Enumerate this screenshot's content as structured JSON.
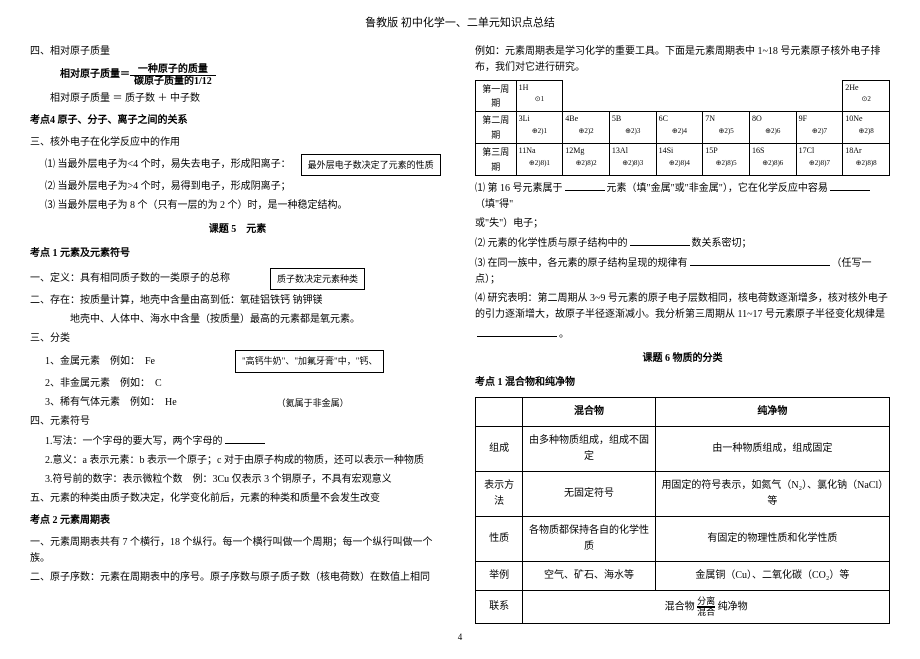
{
  "header": {
    "title": "鲁教版 初中化学一、二单元知识点总结"
  },
  "left": {
    "sec4": "四、相对原子质量",
    "formula_label": "相对原子质量＝",
    "frac_num": "一种原子的质量",
    "frac_den": "碳原子质量的1/12",
    "formula2": "相对原子质量 ＝ 质子数 ＋ 中子数",
    "kd4": "考点4 原子、分子、离子之间的关系",
    "sec3": "三、核外电子在化学反应中的作用",
    "l1": "⑴ 当最外层电子为<4 个时，易失去电子，形成阳离子：",
    "box1": "最外层电子数决定了元素的性质",
    "l2": "⑵ 当最外层电子为>4 个时，易得到电子，形成阴离子；",
    "l3": "⑶ 当最外层电子为 8 个（只有一层的为 2 个）时，是一种稳定结构。",
    "topic5": "课题 5　元素",
    "kd1": "考点 1 元素及元素符号",
    "def": "一、定义：具有相同质子数的一类原子的总称",
    "box2": "质子数决定元素种类",
    "exist": "二、存在：按质量计算，地壳中含量由高到低：氧硅铝铁钙 钠钾镁",
    "exist2": "地壳中、人体中、海水中含量（按质量）最高的元素都是氧元素。",
    "cat": "三、分类",
    "cat1": "1、金属元素　例如：　Fe",
    "cat2": "2、非金属元素　例如：　C",
    "cat3": "3、稀有气体元素　例如：　He",
    "box3": "\"高钙牛奶\"、\"加氟牙膏\"中，\"钙、",
    "note_nonmetal": "（氦属于非金属）",
    "sym": "四、元素符号",
    "sym1": "1.写法：一个字母的要大写，两个字母的",
    "sym2": "2.意义：a 表示元素：b 表示一个原子；c 对于由原子构成的物质，还可以表示一种物质",
    "sym3": "3.符号前的数字：表示微粒个数　例：3Cu 仅表示 3 个铜原子，不具有宏观意义",
    "type": "五、元素的种类由质子数决定，化学变化前后，元素的种类和质量不会发生改变",
    "kd2": "考点 2 元素周期表",
    "pt1": "一、元素周期表共有 7 个横行，18 个纵行。每一个横行叫做一个周期；每一个纵行叫做一个族。",
    "pt2": "二、原子序数：元素在周期表中的序号。原子序数与原子质子数（核电荷数）在数值上相同"
  },
  "right": {
    "intro": "例如：元素周期表是学习化学的重要工具。下面是元素周期表中 1~18 号元素原子核外电子排布，我们对它进行研究。",
    "rows": [
      "第一周期",
      "第二周期",
      "第三周期"
    ],
    "elements": [
      [
        {
          "n": "1H",
          "s": "⊙1"
        },
        null,
        null,
        null,
        null,
        null,
        null,
        {
          "n": "2He",
          "s": "⊙2"
        }
      ],
      [
        {
          "n": "3Li",
          "s": "⊕2)1"
        },
        {
          "n": "4Be",
          "s": "⊕2)2"
        },
        {
          "n": "5B",
          "s": "⊕2)3"
        },
        {
          "n": "6C",
          "s": "⊕2)4"
        },
        {
          "n": "7N",
          "s": "⊕2)5"
        },
        {
          "n": "8O",
          "s": "⊕2)6"
        },
        {
          "n": "9F",
          "s": "⊕2)7"
        },
        {
          "n": "10Ne",
          "s": "⊕2)8"
        }
      ],
      [
        {
          "n": "11Na",
          "s": "⊕2)8)1"
        },
        {
          "n": "12Mg",
          "s": "⊕2)8)2"
        },
        {
          "n": "13Al",
          "s": "⊕2)8)3"
        },
        {
          "n": "14Si",
          "s": "⊕2)8)4"
        },
        {
          "n": "15P",
          "s": "⊕2)8)5"
        },
        {
          "n": "16S",
          "s": "⊕2)8)6"
        },
        {
          "n": "17Cl",
          "s": "⊕2)8)7"
        },
        {
          "n": "18Ar",
          "s": "⊕2)8)8"
        }
      ]
    ],
    "q1a": "⑴ 第 16 号元素属于",
    "q1b": "元素（填\"金属\"或\"非金属\"），它在化学反应中容易",
    "q1c": "（填\"得\"",
    "q1d": "或\"失\"）电子；",
    "q2a": "⑵ 元素的化学性质与原子结构中的",
    "q2b": "数关系密切；",
    "q3a": "⑶ 在同一族中，各元素的原子结构呈现的规律有",
    "q3b": "（任写一点）；",
    "q4": "⑷ 研究表明：第二周期从 3~9 号元素的原子电子层数相同，核电荷数逐渐增多，核对核外电子的引力逐渐增大，故原子半径逐渐减小。我分析第三周期从 11~17 号元素原子半径变化规律是",
    "q4b": "。",
    "topic6": "课题 6 物质的分类",
    "kd_mix": "考点 1 混合物和纯净物",
    "th1": "混合物",
    "th2": "纯净物",
    "r1": "组成",
    "r1a": "由多种物质组成，组成不固定",
    "r1b": "由一种物质组成，组成固定",
    "r2": "表示方法",
    "r2a": "无固定符号",
    "r2b": "用固定的符号表示，如氮气（N₂）、氯化钠（NaCl）等",
    "r3": "性质",
    "r3a": "各物质都保持各自的化学性质",
    "r3b": "有固定的物理性质和化学性质",
    "r4": "举例",
    "r4a": "空气、矿石、海水等",
    "r4b": "金属铜（Cu）、二氧化碳（CO₂）等",
    "r5": "联系",
    "link_left": "混合物",
    "link_top": "分离",
    "link_bot": "混合",
    "link_right": "纯净物"
  },
  "page_num": "4"
}
